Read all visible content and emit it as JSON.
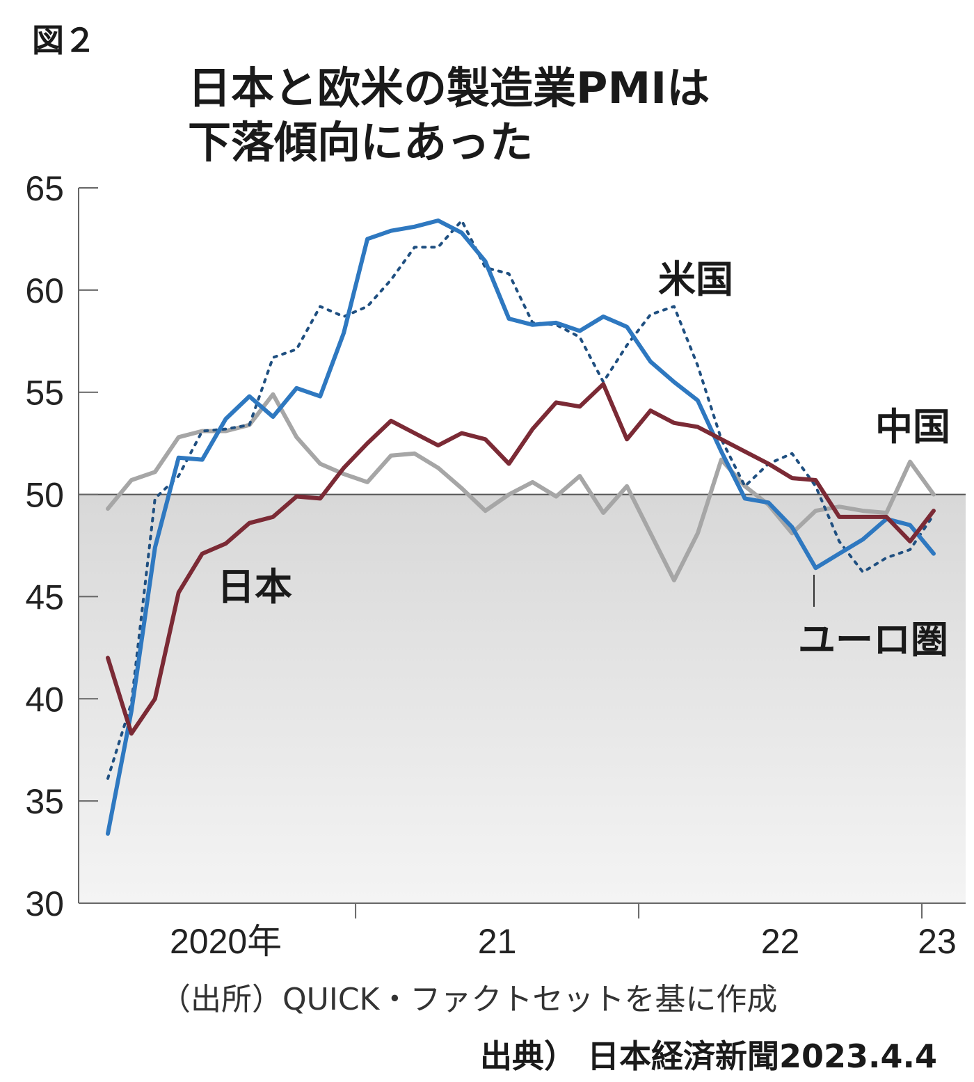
{
  "figure_label": "図２",
  "title_line1": "日本と欧米の製造業PMIは",
  "title_line2": "下落傾向にあった",
  "source": "（出所）QUICK・ファクトセットを基に作成",
  "credit": "出典） 日本経済新聞2023.4.4",
  "colors": {
    "japan": "#7b2a35",
    "euro": "#2e78c0",
    "us": "#1f4f80",
    "china": "#a6a6a6",
    "shade": "#dcdcdc"
  },
  "chart_data": {
    "type": "line",
    "title": "日本と欧米の製造業PMIは 下落傾向にあった",
    "xlabel": "",
    "ylabel": "",
    "ylim": [
      30,
      65
    ],
    "yticks": [
      30,
      35,
      40,
      45,
      50,
      55,
      60,
      65
    ],
    "x_tick_labels": [
      "2020年",
      "21",
      "22",
      "23"
    ],
    "grid": false,
    "reference_line": 50,
    "shaded_below": 50,
    "x_start": "2020-02",
    "x_end": "2023-03",
    "series": [
      {
        "name": "日本",
        "color": "#7b2a35",
        "style": "solid",
        "values": [
          42.0,
          38.3,
          40.0,
          45.2,
          47.1,
          47.6,
          48.6,
          48.9,
          49.9,
          49.8,
          51.3,
          52.5,
          53.6,
          53.0,
          52.4,
          53.0,
          52.7,
          51.5,
          53.2,
          54.5,
          54.3,
          55.4,
          52.7,
          54.1,
          53.5,
          53.3,
          52.7,
          52.1,
          51.5,
          50.8,
          50.7,
          48.9,
          48.9,
          48.9,
          47.7,
          49.2
        ]
      },
      {
        "name": "ユーロ圏",
        "color": "#2e78c0",
        "style": "solid",
        "values": [
          33.4,
          39.4,
          47.4,
          51.8,
          51.7,
          53.7,
          54.8,
          53.8,
          55.2,
          54.8,
          57.9,
          62.5,
          62.9,
          63.1,
          63.4,
          62.8,
          61.4,
          58.6,
          58.3,
          58.4,
          58.0,
          58.7,
          58.2,
          56.5,
          55.5,
          54.6,
          52.1,
          49.8,
          49.6,
          48.4,
          46.4,
          47.1,
          47.8,
          48.8,
          48.5,
          47.1
        ]
      },
      {
        "name": "米国",
        "color": "#1f4f80",
        "style": "dotted",
        "values": [
          36.1,
          39.8,
          49.8,
          50.9,
          53.1,
          53.2,
          53.4,
          56.7,
          57.1,
          59.2,
          58.7,
          59.2,
          60.5,
          62.1,
          62.1,
          63.4,
          61.1,
          60.8,
          58.4,
          58.3,
          57.7,
          55.5,
          57.3,
          58.8,
          59.2,
          56.3,
          52.7,
          50.4,
          51.5,
          52.0,
          50.4,
          47.7,
          46.2,
          46.9,
          47.3,
          49.0
        ]
      },
      {
        "name": "中国",
        "color": "#a6a6a6",
        "style": "solid",
        "values": [
          49.3,
          50.7,
          51.1,
          52.8,
          53.1,
          53.1,
          53.4,
          54.9,
          52.8,
          51.5,
          51.0,
          50.6,
          51.9,
          52.0,
          51.3,
          50.3,
          49.2,
          50.0,
          50.6,
          49.9,
          50.9,
          49.1,
          50.4,
          48.1,
          45.8,
          48.1,
          51.7,
          50.4,
          49.5,
          48.1,
          49.2,
          49.4,
          49.2,
          49.1,
          51.6,
          50.0
        ]
      }
    ],
    "series_labels": [
      "米国",
      "中国",
      "日本",
      "ユーロ圏"
    ]
  }
}
